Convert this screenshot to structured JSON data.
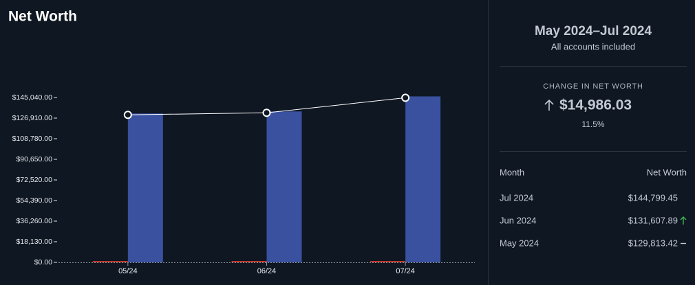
{
  "title": "Net Worth",
  "chart_data": {
    "type": "bar",
    "categories": [
      "05/24",
      "06/24",
      "07/24"
    ],
    "series": [
      {
        "color": "#c0392b",
        "values": [
          1200,
          1200,
          1200
        ]
      },
      {
        "color": "#3a51a0",
        "values": [
          131000,
          132800,
          146000
        ]
      },
      {
        "type": "line",
        "color": "#ffffff",
        "values": [
          129813.42,
          131607.89,
          144799.45
        ]
      }
    ],
    "ylim": [
      0,
      145040
    ],
    "yticks": [
      {
        "value": 0,
        "label": "$0.00"
      },
      {
        "value": 18130,
        "label": "$18,130.00"
      },
      {
        "value": 36260,
        "label": "$36,260.00"
      },
      {
        "value": 54390,
        "label": "$54,390.00"
      },
      {
        "value": 72520,
        "label": "$72,520.00"
      },
      {
        "value": 90650,
        "label": "$90,650.00"
      },
      {
        "value": 108780,
        "label": "$108,780.00"
      },
      {
        "value": 126910,
        "label": "$126,910.00"
      },
      {
        "value": 145040,
        "label": "$145,040.00"
      }
    ]
  },
  "summary": {
    "period": "May 2024–Jul 2024",
    "scope": "All accounts included",
    "change_label": "CHANGE IN NET WORTH",
    "change_value": "$14,986.03",
    "change_percent": "11.5%",
    "table": {
      "columns": [
        "Month",
        "Net Worth"
      ],
      "rows": [
        [
          "Jul 2024",
          "$144,799.45"
        ],
        [
          "Jun 2024",
          "$131,607.89"
        ],
        [
          "May 2024",
          "$129,813.42"
        ]
      ]
    }
  }
}
